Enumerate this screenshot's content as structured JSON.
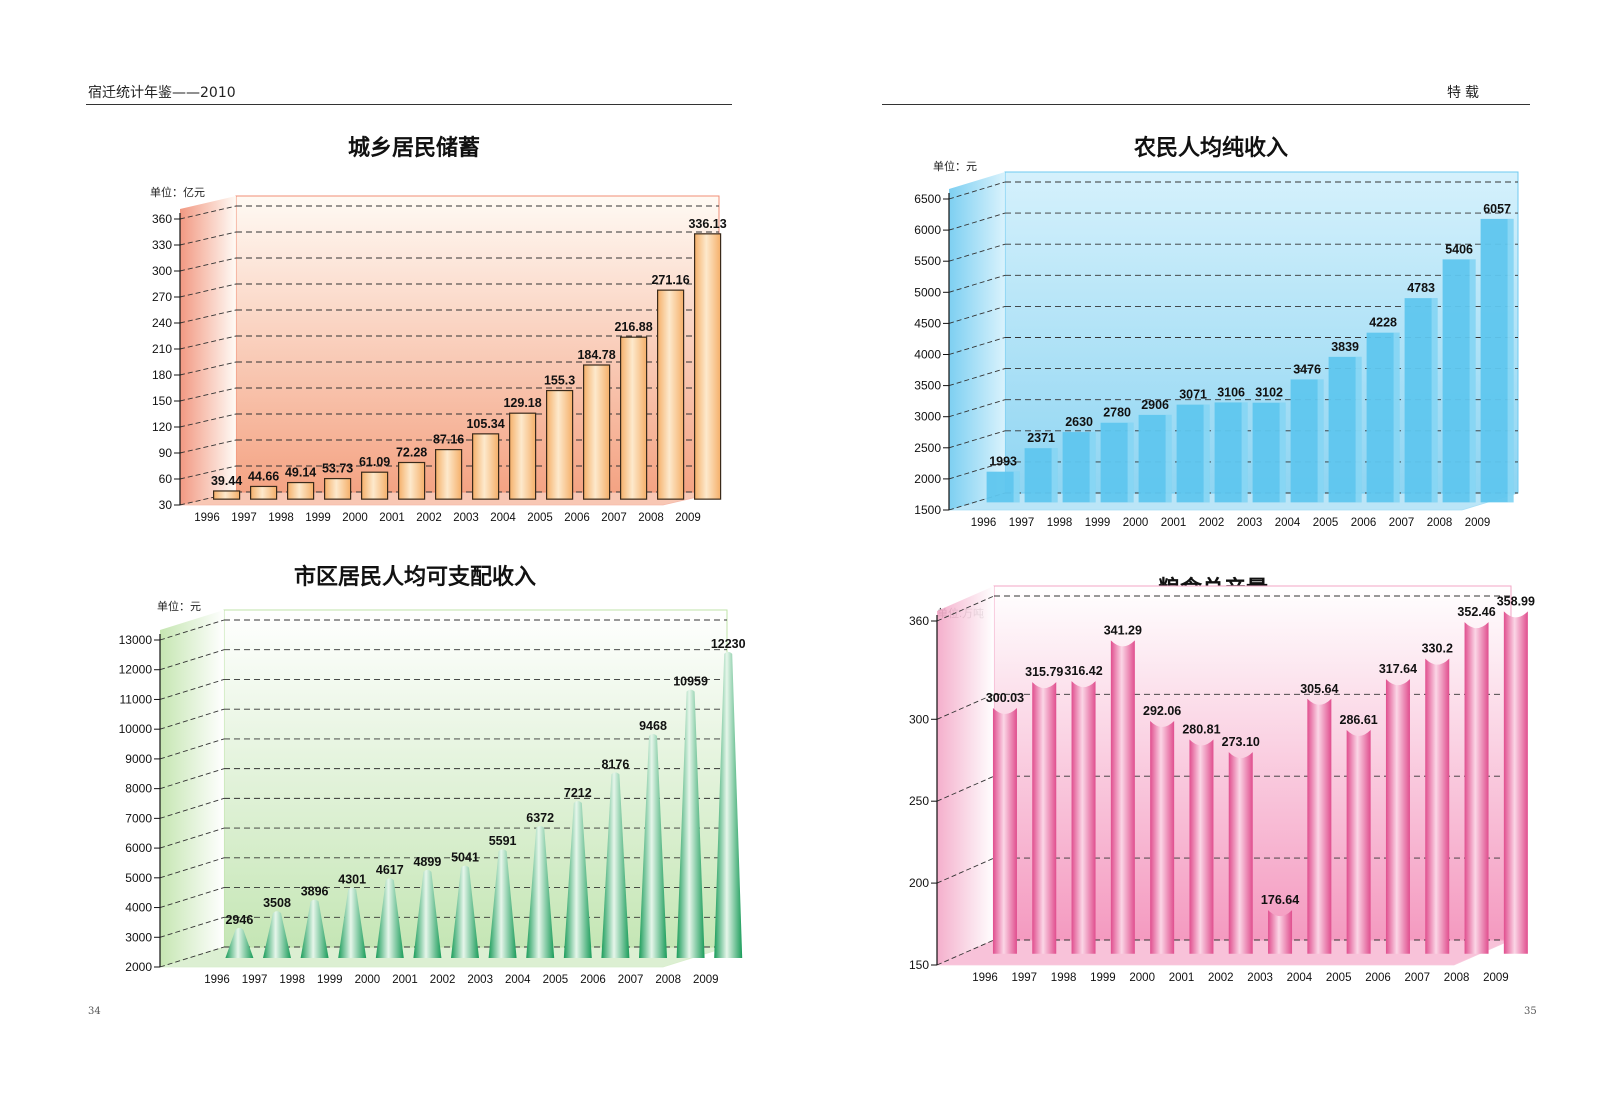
{
  "header": {
    "left": "宿迁统计年鉴——2010",
    "right": "特载"
  },
  "page_numbers": {
    "left": "34",
    "right": "35"
  },
  "chart_data": [
    {
      "type": "bar",
      "title": "城乡居民储蓄",
      "unit_label": "单位：亿元",
      "categories": [
        "1996",
        "1997",
        "1998",
        "1999",
        "2000",
        "2001",
        "2002",
        "2003",
        "2004",
        "2005",
        "2006",
        "2007",
        "2008",
        "2009"
      ],
      "values": [
        39.44,
        44.66,
        49.14,
        53.73,
        61.09,
        72.28,
        87.16,
        105.34,
        129.18,
        155.3,
        184.78,
        216.88,
        271.16,
        336.13
      ],
      "value_labels": [
        "39.44",
        "44.66",
        "49.14",
        "53.73",
        "61.09",
        "72.28",
        "87.16",
        "105.34",
        "129.18",
        "155.3",
        "184.78",
        "216.88",
        "271.16",
        "336.13"
      ],
      "yticks": [
        30,
        60,
        90,
        120,
        150,
        180,
        210,
        240,
        270,
        300,
        330,
        360
      ],
      "ylim": [
        30,
        360
      ],
      "grid": true,
      "colors": {
        "bar": "#f5b06a",
        "bar_light": "#fde9cc",
        "panel_top": "#fffaf4",
        "panel_bottom": "#f4a383",
        "side": "#f08d74"
      }
    },
    {
      "type": "bar",
      "title": "农民人均纯收入",
      "unit_label": "单位：元",
      "categories": [
        "1996",
        "1997",
        "1998",
        "1999",
        "2000",
        "2001",
        "2002",
        "2003",
        "2004",
        "2005",
        "2006",
        "2007",
        "2008",
        "2009"
      ],
      "values": [
        1993,
        2371,
        2630,
        2780,
        2906,
        3071,
        3106,
        3102,
        3476,
        3839,
        4228,
        4783,
        5406,
        6057
      ],
      "value_labels": [
        "1993",
        "2371",
        "2630",
        "2780",
        "2906",
        "3071",
        "3106",
        "3102",
        "3476",
        "3839",
        "4228",
        "4783",
        "5406",
        "6057"
      ],
      "yticks": [
        1500,
        2000,
        2500,
        3000,
        3500,
        4000,
        4500,
        5000,
        5500,
        6000,
        6500
      ],
      "ylim": [
        1500,
        6500
      ],
      "grid": true,
      "colors": {
        "bar": "#5fc6ee",
        "bar_light": "#a8e2f8",
        "panel_top": "#d5f1fc",
        "panel_bottom": "#8fd5f2",
        "side": "#6fcaf0"
      }
    },
    {
      "type": "bar",
      "title": "市区居民人均可支配收入",
      "unit_label": "单位：元",
      "categories": [
        "1996",
        "1997",
        "1998",
        "1999",
        "2000",
        "2001",
        "2002",
        "2003",
        "2004",
        "2005",
        "2006",
        "2007",
        "2008",
        "2009"
      ],
      "values": [
        2946,
        3508,
        3896,
        4301,
        4617,
        4899,
        5041,
        5591,
        6372,
        7212,
        8176,
        9468,
        10959,
        12230
      ],
      "value_labels": [
        "2946",
        "3508",
        "3896",
        "4301",
        "4617",
        "4899",
        "5041",
        "5591",
        "6372",
        "7212",
        "8176",
        "9468",
        "10959",
        "12230"
      ],
      "yticks": [
        2000,
        3000,
        4000,
        5000,
        6000,
        7000,
        8000,
        9000,
        10000,
        11000,
        12000,
        13000
      ],
      "ylim": [
        2000,
        13000
      ],
      "grid": true,
      "colors": {
        "bar": "#1a9c5a",
        "bar_light": "#e6f6ea",
        "panel_top": "#ffffff",
        "panel_bottom": "#c5e6b5",
        "side": "#bfe3a9"
      }
    },
    {
      "type": "bar",
      "title": "粮食总产量",
      "unit_label": "单位:万吨",
      "categories": [
        "1996",
        "1997",
        "1998",
        "1999",
        "2000",
        "2001",
        "2002",
        "2003",
        "2004",
        "2005",
        "2006",
        "2007",
        "2008",
        "2009"
      ],
      "values": [
        300.03,
        315.79,
        316.42,
        341.29,
        292.06,
        280.81,
        273.1,
        176.64,
        305.64,
        286.61,
        317.64,
        330.2,
        352.46,
        358.99
      ],
      "value_labels": [
        "300.03",
        "315.79",
        "316.42",
        "341.29",
        "292.06",
        "280.81",
        "273.10",
        "176.64",
        "305.64",
        "286.61",
        "317.64",
        "330.2",
        "352.46",
        "358.99"
      ],
      "yticks": [
        150,
        200,
        250,
        300,
        360
      ],
      "ylim": [
        150,
        360
      ],
      "grid": true,
      "colors": {
        "bar": "#e04e8e",
        "bar_light": "#fbd6e6",
        "panel_top": "#ffffff",
        "panel_bottom": "#f49ac0",
        "side": "#f3a6c6"
      }
    }
  ]
}
